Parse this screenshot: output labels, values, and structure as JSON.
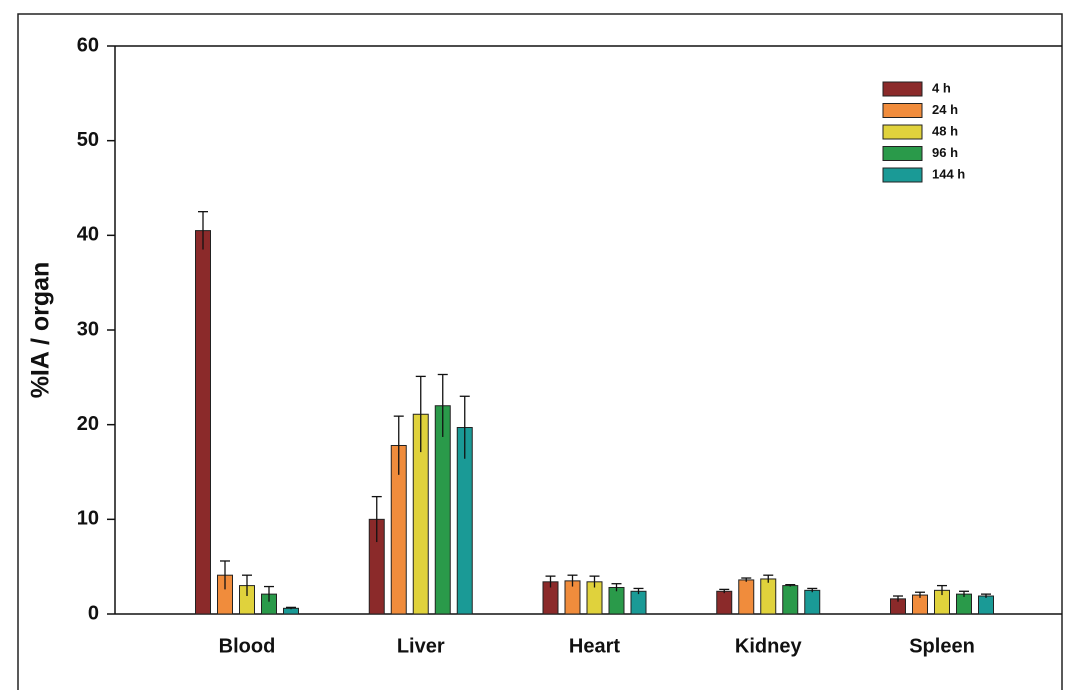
{
  "chart_data": {
    "type": "bar",
    "y_label": "%IA / organ",
    "categories": [
      "Blood",
      "Liver",
      "Heart",
      "Kidney",
      "Spleen"
    ],
    "series": [
      {
        "name": "4 h",
        "color": "#8b2a2a",
        "values": [
          40.5,
          10.0,
          3.4,
          2.4,
          1.6
        ],
        "errors": [
          2.0,
          2.4,
          0.6,
          0.2,
          0.3
        ]
      },
      {
        "name": "24 h",
        "color": "#f08c3c",
        "values": [
          4.1,
          17.8,
          3.5,
          3.6,
          2.0
        ],
        "errors": [
          1.5,
          3.1,
          0.6,
          0.2,
          0.3
        ]
      },
      {
        "name": "48 h",
        "color": "#e0d23c",
        "values": [
          3.0,
          21.1,
          3.4,
          3.7,
          2.5
        ],
        "errors": [
          1.1,
          4.0,
          0.6,
          0.4,
          0.5
        ]
      },
      {
        "name": "96 h",
        "color": "#2a9a4a",
        "values": [
          2.1,
          22.0,
          2.8,
          3.0,
          2.1
        ],
        "errors": [
          0.8,
          3.3,
          0.4,
          0.1,
          0.3
        ]
      },
      {
        "name": "144 h",
        "color": "#1a9a96",
        "values": [
          0.6,
          19.7,
          2.4,
          2.5,
          1.9
        ],
        "errors": [
          0.1,
          3.3,
          0.3,
          0.2,
          0.2
        ]
      }
    ],
    "ylim": [
      0,
      60
    ],
    "yticks": [
      0,
      10,
      20,
      30,
      40,
      50,
      60
    ],
    "legend": "top-right"
  }
}
